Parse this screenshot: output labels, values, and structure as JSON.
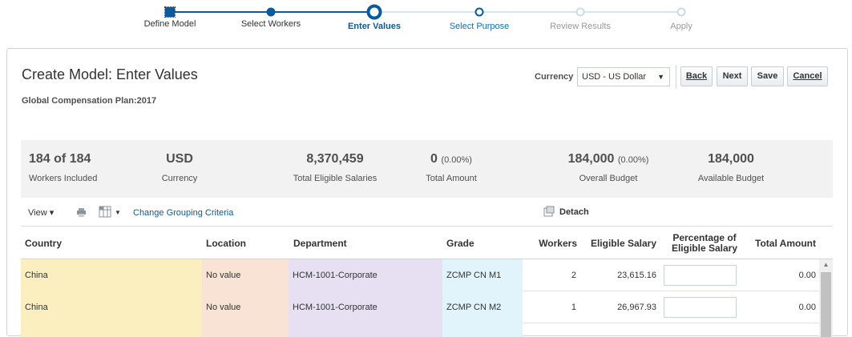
{
  "train": {
    "steps": [
      {
        "label": "Define Model",
        "state": "done"
      },
      {
        "label": "Select Workers",
        "state": "done"
      },
      {
        "label": "Enter Values",
        "state": "current"
      },
      {
        "label": "Select Purpose",
        "state": "next"
      },
      {
        "label": "Review Results",
        "state": "future"
      },
      {
        "label": "Apply",
        "state": "future"
      }
    ]
  },
  "header": {
    "title": "Create Model: Enter Values",
    "plan": "Global Compensation Plan:2017",
    "currency_label": "Currency",
    "currency_value": "USD - US Dollar",
    "buttons": {
      "back": "Back",
      "next": "Next",
      "save": "Save",
      "cancel": "Cancel"
    }
  },
  "summary": {
    "workers": {
      "value": "184 of 184",
      "caption": "Workers Included"
    },
    "currency": {
      "value": "USD",
      "caption": "Currency"
    },
    "eligible": {
      "value": "8,370,459",
      "caption": "Total Eligible Salaries"
    },
    "total_amount": {
      "value": "0",
      "pct": "(0.00%)",
      "caption": "Total Amount"
    },
    "overall_budget": {
      "value": "184,000",
      "pct": "(0.00%)",
      "caption": "Overall Budget"
    },
    "available_budget": {
      "value": "184,000",
      "caption": "Available Budget"
    }
  },
  "table_toolbar": {
    "view": "View ▾",
    "change_grouping": "Change Grouping Criteria",
    "detach": "Detach"
  },
  "table": {
    "columns": {
      "country": "Country",
      "location": "Location",
      "department": "Department",
      "grade": "Grade",
      "workers": "Workers",
      "eligible_salary": "Eligible Salary",
      "percentage": "Percentage of Eligible Salary",
      "total_amount": "Total Amount"
    },
    "rows": [
      {
        "country": "China",
        "location": "No value",
        "department": "HCM-1001-Corporate",
        "grade": "ZCMP CN M1",
        "workers": "2",
        "eligible_salary": "23,615.16",
        "percentage": "",
        "total_amount": "0.00"
      },
      {
        "country": "China",
        "location": "No value",
        "department": "HCM-1001-Corporate",
        "grade": "ZCMP CN M2",
        "workers": "1",
        "eligible_salary": "26,967.93",
        "percentage": "",
        "total_amount": "0.00"
      }
    ]
  },
  "colors": {
    "accent": "#0b5a9e",
    "country_bg": "#fbeebf",
    "location_bg": "#f9e3d4",
    "department_bg": "#e7e0f3",
    "grade_bg": "#e1f3fb"
  }
}
